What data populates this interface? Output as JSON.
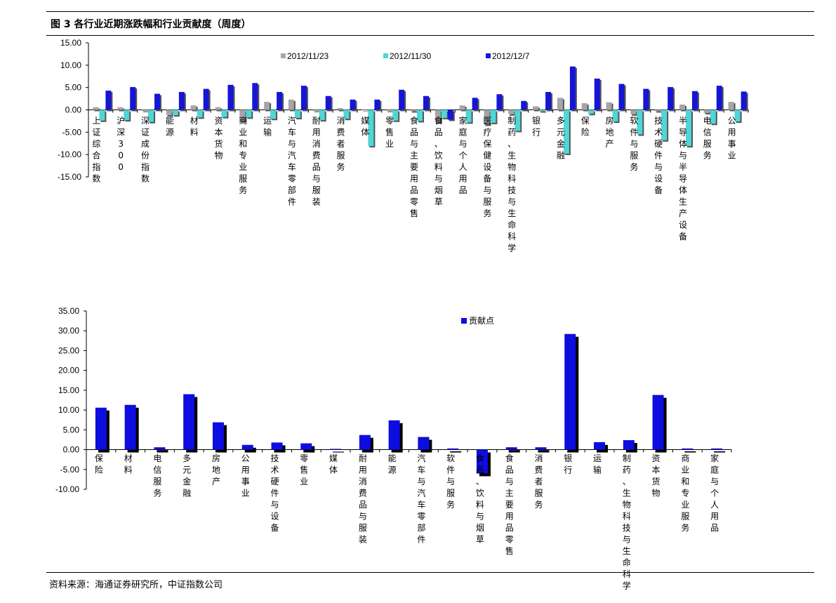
{
  "figure_title": "图 3 各行业近期涨跌幅和行业贡献度（周度）",
  "source": "资料来源：海通证券研究所，中证指数公司",
  "colors": {
    "s1": "#a6a6a6",
    "s2": "#4fd6d6",
    "s3": "#1515d8",
    "contrib": "#0d0de0",
    "shadow": "#000000"
  },
  "chart_data": [
    {
      "type": "bar",
      "ylim": [
        -15,
        15
      ],
      "yticks": [
        "15.00",
        "10.00",
        "5.00",
        "0.00",
        "-5.00",
        "-10.00",
        "-15.00"
      ],
      "legend_position": "top-center",
      "categories": [
        "上证综合指数",
        "沪深300",
        "深证成份指数",
        "能源",
        "材料",
        "资本货物",
        "商业和专业服务",
        "运输",
        "汽车与汽车零部件",
        "耐用消费品与服装",
        "消费者服务",
        "媒体",
        "零售业",
        "食品与主要用品零售",
        "食品、饮料与烟草",
        "家庭与个人用品",
        "医疗保健设备与服务",
        "制药、生物科技与生命科学",
        "银行",
        "多元金融",
        "保险",
        "房地产",
        "软件与服务",
        "技术硬件与设备",
        "半导体与半导体生产设备",
        "电信服务",
        "公用事业"
      ],
      "series": [
        {
          "name": "2012/11/23",
          "values": [
            0.6,
            0.6,
            -0.2,
            -1.2,
            1.0,
            0.6,
            -2.5,
            1.8,
            2.3,
            -0.2,
            0.4,
            -0.1,
            -0.2,
            -0.3,
            -2.8,
            1.0,
            -3.3,
            -1.0,
            0.8,
            2.7,
            1.5,
            1.7,
            -1.0,
            -0.3,
            1.2,
            -0.7,
            1.8
          ]
        },
        {
          "name": "2012/11/30",
          "values": [
            -2.4,
            -2.3,
            -2.7,
            -1.2,
            -1.7,
            -1.6,
            -1.7,
            -2.0,
            -1.8,
            -2.3,
            -2.0,
            -8.1,
            -2.4,
            -2.5,
            -1.8,
            -2.8,
            -2.9,
            -4.7,
            -0.3,
            -9.8,
            -0.9,
            -2.6,
            -5.5,
            -6.8,
            -8.1,
            -3.1,
            -2.6
          ]
        },
        {
          "name": "2012/12/7",
          "values": [
            4.3,
            5.1,
            3.6,
            4.0,
            4.7,
            5.6,
            6.0,
            4.0,
            5.4,
            3.1,
            2.3,
            2.3,
            4.5,
            3.1,
            -2.2,
            2.7,
            3.5,
            2.0,
            4.0,
            9.7,
            7.0,
            5.8,
            4.7,
            5.1,
            4.2,
            5.4,
            4.1
          ]
        }
      ]
    },
    {
      "type": "bar",
      "ylim": [
        -10,
        35
      ],
      "yticks": [
        "35.00",
        "30.00",
        "25.00",
        "20.00",
        "15.00",
        "10.00",
        "5.00",
        "0.00",
        "-5.00",
        "-10.00"
      ],
      "legend_position": "top-center",
      "categories": [
        "保险",
        "材料",
        "电信服务",
        "多元金融",
        "房地产",
        "公用事业",
        "技术硬件与设备",
        "零售业",
        "媒体",
        "耐用消费品与服装",
        "能源",
        "汽车与汽车零部件",
        "软件与服务",
        "食品、饮料与烟草",
        "食品与主要用品零售",
        "消费者服务",
        "银行",
        "运输",
        "制药、生物科技与生命科学",
        "资本货物",
        "商业和专业服务",
        "家庭与个人用品"
      ],
      "series": [
        {
          "name": "贡献点",
          "values": [
            10.6,
            11.3,
            0.6,
            14.0,
            6.9,
            1.2,
            1.8,
            1.6,
            0.2,
            3.7,
            7.4,
            3.2,
            0.3,
            -6.0,
            0.6,
            0.6,
            29.2,
            1.9,
            2.4,
            13.8,
            0.3,
            0.3
          ]
        }
      ]
    }
  ]
}
